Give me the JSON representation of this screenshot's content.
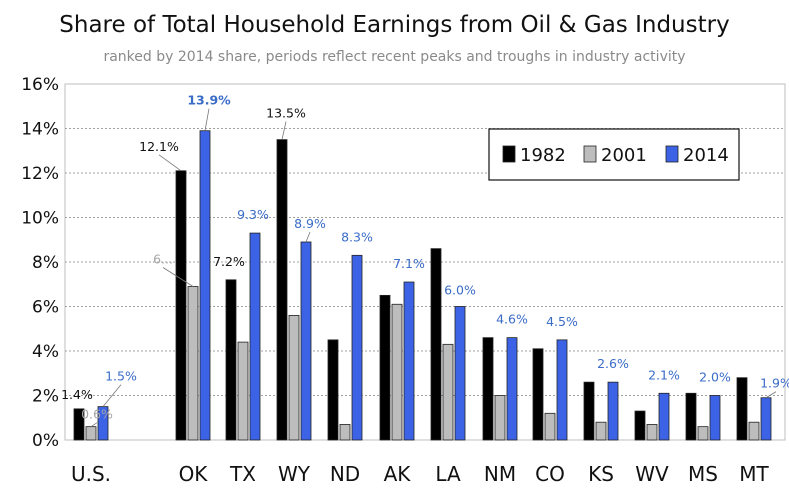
{
  "chart_data": {
    "type": "bar",
    "title": "Share of Total Household Earnings from Oil & Gas Industry",
    "subtitle": "ranked by 2014 share, periods reflect recent peaks and troughs in industry activity",
    "xlabel": "",
    "ylabel": "",
    "ylim": [
      0,
      16
    ],
    "yticks": [
      "0%",
      "2%",
      "4%",
      "6%",
      "8%",
      "10%",
      "12%",
      "14%",
      "16%"
    ],
    "grid": true,
    "legend_position": "top-right",
    "categories": [
      "U.S.",
      "OK",
      "TX",
      "WY",
      "ND",
      "AK",
      "LA",
      "NM",
      "CO",
      "KS",
      "WV",
      "MS",
      "MT"
    ],
    "series": [
      {
        "name": "1982",
        "color": "#000000",
        "values": [
          1.4,
          12.1,
          7.2,
          13.5,
          4.5,
          6.5,
          8.6,
          4.6,
          4.1,
          2.6,
          1.3,
          2.1,
          2.8
        ]
      },
      {
        "name": "2001",
        "color": "#bdbdbd",
        "values": [
          0.6,
          6.9,
          4.4,
          5.6,
          0.7,
          6.1,
          4.3,
          2.0,
          1.2,
          0.8,
          0.7,
          0.6,
          0.8
        ]
      },
      {
        "name": "2014",
        "color": "#3c63e6",
        "values": [
          1.5,
          13.9,
          9.3,
          8.9,
          8.3,
          7.1,
          6.0,
          4.6,
          4.5,
          2.6,
          2.1,
          2.0,
          1.9
        ]
      }
    ],
    "data_labels": [
      {
        "category": "U.S.",
        "series": "1982",
        "text": "1.4%",
        "color": "#111111",
        "bold": false
      },
      {
        "category": "U.S.",
        "series": "2001",
        "text": "0.6%",
        "color": "#a6a6a6",
        "bold": false
      },
      {
        "category": "U.S.",
        "series": "2014",
        "text": "1.5%",
        "color": "#3a6cc8",
        "bold": false
      },
      {
        "category": "OK",
        "series": "1982",
        "text": "12.1%",
        "color": "#111111",
        "bold": false
      },
      {
        "category": "OK",
        "series": "2001",
        "text": "6...",
        "color": "#a6a6a6",
        "bold": false
      },
      {
        "category": "OK",
        "series": "2014",
        "text": "13.9%",
        "color": "#3a6cc8",
        "bold": true
      },
      {
        "category": "TX",
        "series": "1982",
        "text": "7.2%",
        "color": "#111111",
        "bold": false
      },
      {
        "category": "TX",
        "series": "2014",
        "text": "9.3%",
        "color": "#3a6cc8",
        "bold": false
      },
      {
        "category": "WY",
        "series": "1982",
        "text": "13.5%",
        "color": "#111111",
        "bold": false
      },
      {
        "category": "WY",
        "series": "2014",
        "text": "8.9%",
        "color": "#3a6cc8",
        "bold": false
      },
      {
        "category": "ND",
        "series": "2014",
        "text": "8.3%",
        "color": "#3a6cc8",
        "bold": false
      },
      {
        "category": "AK",
        "series": "2014",
        "text": "7.1%",
        "color": "#3a6cc8",
        "bold": false
      },
      {
        "category": "LA",
        "series": "2014",
        "text": "6.0%",
        "color": "#3a6cc8",
        "bold": false
      },
      {
        "category": "NM",
        "series": "2014",
        "text": "4.6%",
        "color": "#3a6cc8",
        "bold": false
      },
      {
        "category": "CO",
        "series": "2014",
        "text": "4.5%",
        "color": "#3a6cc8",
        "bold": false
      },
      {
        "category": "KS",
        "series": "2014",
        "text": "2.6%",
        "color": "#3a6cc8",
        "bold": false
      },
      {
        "category": "WV",
        "series": "2014",
        "text": "2.1%",
        "color": "#3a6cc8",
        "bold": false
      },
      {
        "category": "MS",
        "series": "2014",
        "text": "2.0%",
        "color": "#3a6cc8",
        "bold": false
      },
      {
        "category": "MT",
        "series": "2014",
        "text": "1.9%",
        "color": "#3a6cc8",
        "bold": false
      }
    ]
  }
}
